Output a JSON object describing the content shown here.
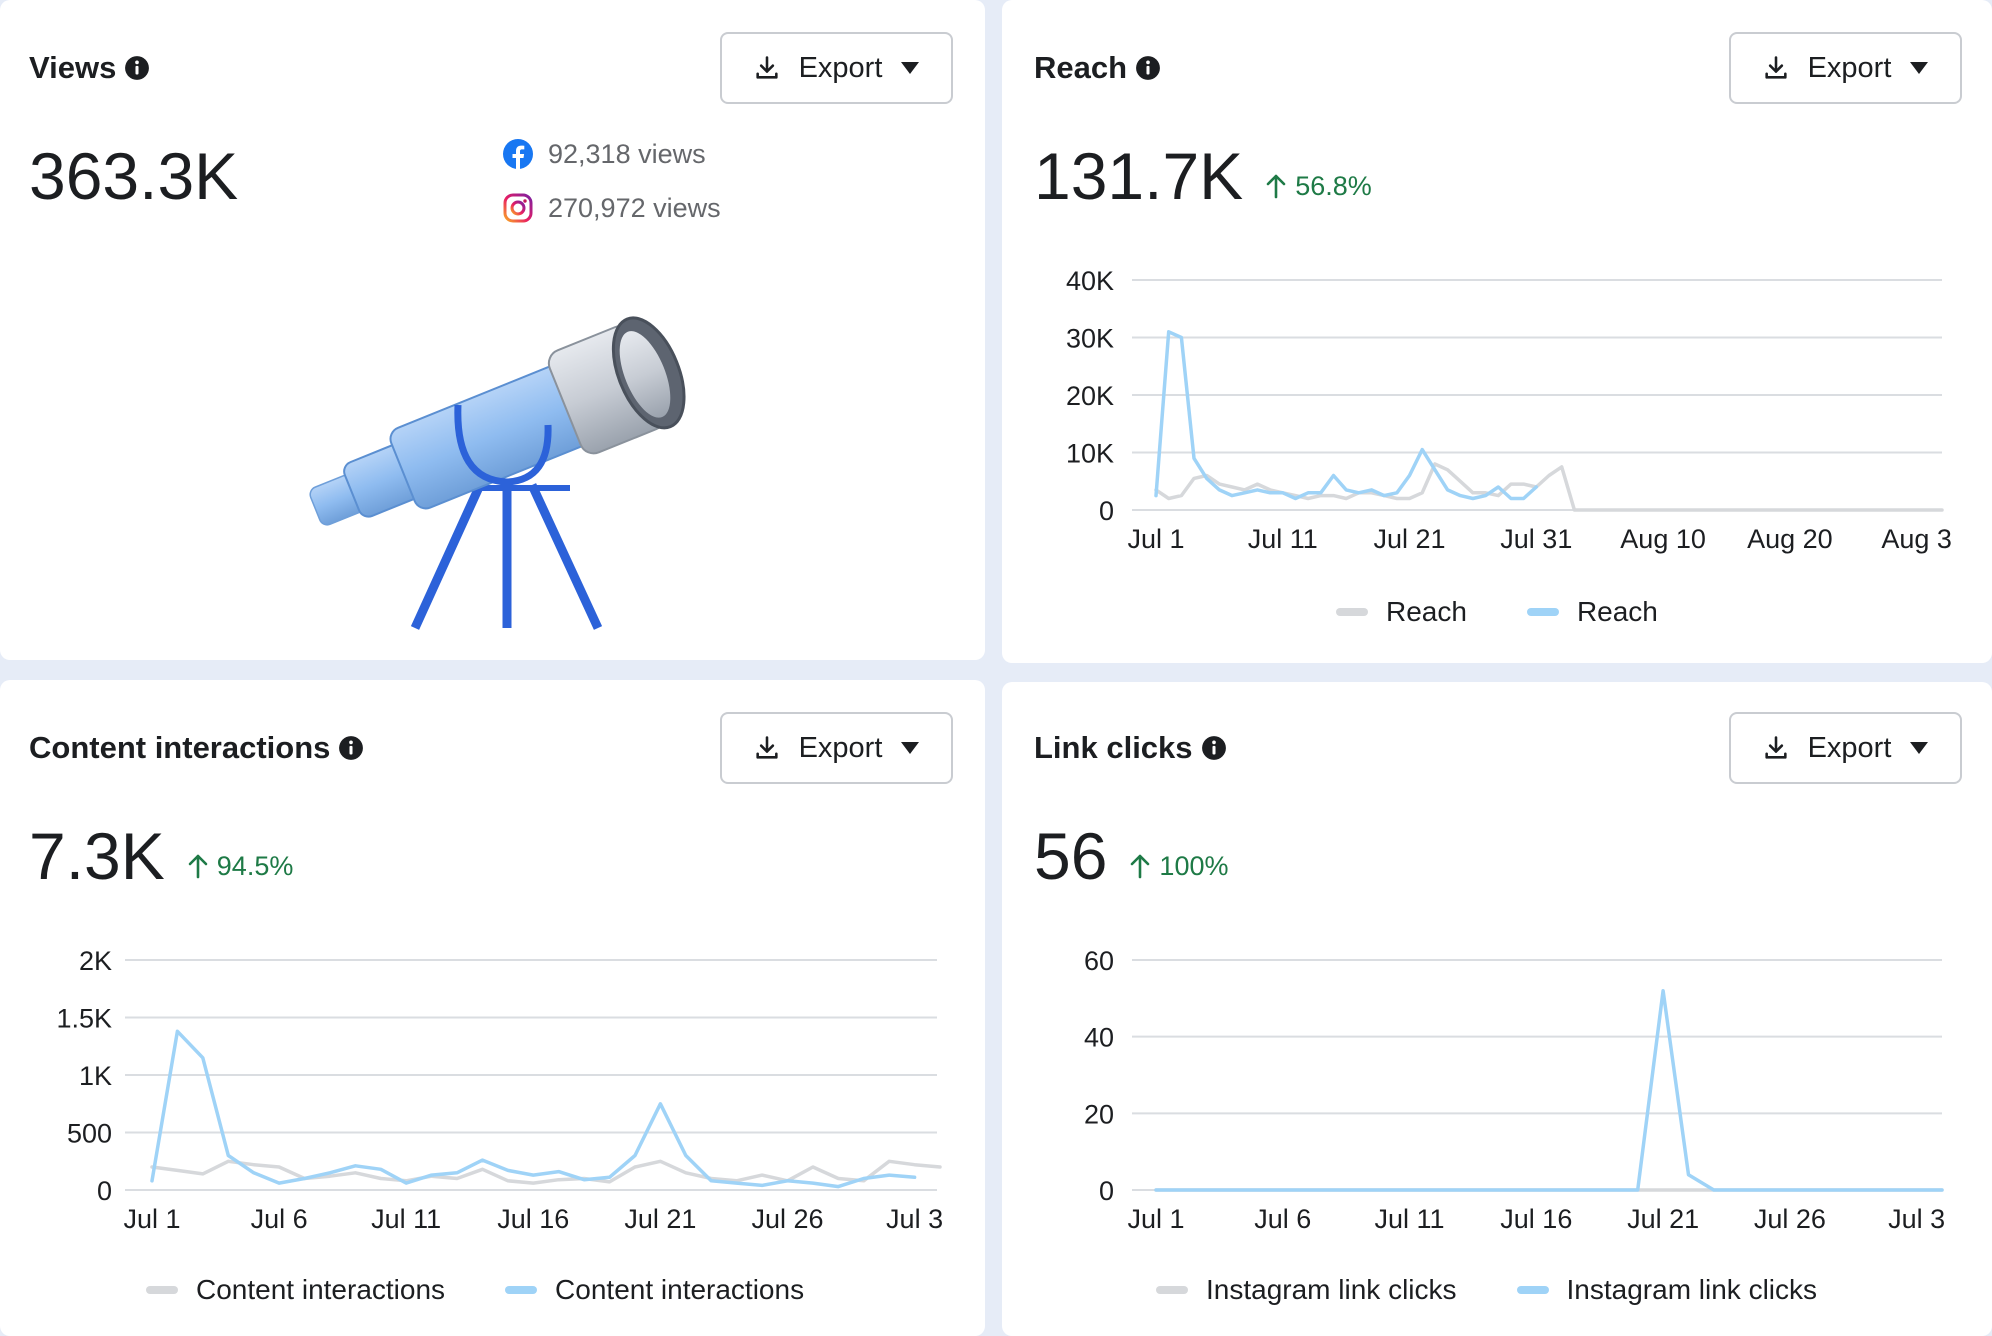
{
  "views": {
    "title": "Views",
    "export_label": "Export",
    "total": "363.3K",
    "facebook_views": "92,318 views",
    "instagram_views": "270,972 views",
    "icons": [
      "info-icon",
      "download-icon",
      "caret-down-icon",
      "facebook-icon",
      "instagram-icon",
      "telescope-illustration"
    ]
  },
  "reach": {
    "title": "Reach",
    "export_label": "Export",
    "total": "131.7K",
    "change": "56.8%"
  },
  "interactions": {
    "title": "Content interactions",
    "export_label": "Export",
    "total": "7.3K",
    "change": "94.5%"
  },
  "links": {
    "title": "Link clicks",
    "export_label": "Export",
    "total": "56",
    "change": "100%"
  },
  "colors": {
    "current_series": "#9fd3f7",
    "previous_series": "#d6d8db",
    "trend_up": "#1e7a46",
    "facebook": "#1877f2",
    "grid": "#dadde1"
  },
  "chart_data": [
    {
      "id": "reach",
      "type": "line",
      "x_ticks": [
        "Jul 1",
        "Jul 11",
        "Jul 21",
        "Jul 31",
        "Aug 10",
        "Aug 20",
        "Aug 3"
      ],
      "y_ticks": [
        "40K",
        "30K",
        "20K",
        "10K",
        "0"
      ],
      "ylim": [
        0,
        40000
      ],
      "x_range_days": [
        0,
        62
      ],
      "grid": true,
      "legend_placement": "bottom",
      "series": [
        {
          "name": "Reach",
          "role": "previous",
          "x": [
            0,
            1,
            2,
            3,
            4,
            5,
            6,
            7,
            8,
            9,
            10,
            11,
            12,
            13,
            14,
            15,
            16,
            17,
            18,
            19,
            20,
            21,
            22,
            23,
            24,
            25,
            26,
            27,
            28,
            29,
            30,
            31,
            32,
            33,
            34,
            35,
            36,
            37,
            38,
            39,
            40,
            41,
            42,
            43,
            44,
            45,
            46,
            47,
            48,
            49,
            50,
            51,
            52,
            53,
            54,
            55,
            56,
            57,
            58,
            59,
            60,
            61,
            62
          ],
          "values": [
            3500,
            2000,
            2500,
            5500,
            6000,
            4500,
            4000,
            3500,
            4500,
            3500,
            3000,
            2500,
            2000,
            2500,
            2500,
            2000,
            3000,
            3000,
            2500,
            2000,
            2000,
            3000,
            8000,
            7000,
            5000,
            3000,
            3000,
            2500,
            4500,
            4500,
            4000,
            6000,
            7500,
            0,
            0,
            0,
            0,
            0,
            0,
            0,
            0,
            0,
            0,
            0,
            0,
            0,
            0,
            0,
            0,
            0,
            0,
            0,
            0,
            0,
            0,
            0,
            0,
            0,
            0,
            0,
            0,
            0,
            0
          ]
        },
        {
          "name": "Reach",
          "role": "current",
          "x": [
            0,
            1,
            2,
            3,
            4,
            5,
            6,
            7,
            8,
            9,
            10,
            11,
            12,
            13,
            14,
            15,
            16,
            17,
            18,
            19,
            20,
            21,
            22,
            23,
            24,
            25,
            26,
            27,
            28,
            29,
            30
          ],
          "values": [
            2500,
            31000,
            30000,
            9000,
            5500,
            3500,
            2500,
            3000,
            3500,
            3000,
            3000,
            2000,
            3000,
            3000,
            6000,
            3500,
            3000,
            3500,
            2500,
            3000,
            6000,
            10500,
            7000,
            3500,
            2500,
            2000,
            2500,
            4000,
            2000,
            2000,
            4000
          ]
        }
      ]
    },
    {
      "id": "content-interactions",
      "type": "line",
      "x_ticks": [
        "Jul 1",
        "Jul 6",
        "Jul 11",
        "Jul 16",
        "Jul 21",
        "Jul 26",
        "Jul 3"
      ],
      "y_ticks": [
        "2K",
        "1.5K",
        "1K",
        "500",
        "0"
      ],
      "ylim": [
        0,
        2000
      ],
      "grid": true,
      "legend_placement": "bottom",
      "series": [
        {
          "name": "Content interactions",
          "role": "previous",
          "x": [
            0,
            1,
            2,
            3,
            4,
            5,
            6,
            7,
            8,
            9,
            10,
            11,
            12,
            13,
            14,
            15,
            16,
            17,
            18,
            19,
            20,
            21,
            22,
            23,
            24,
            25,
            26,
            27,
            28,
            29,
            30,
            31
          ],
          "values": [
            200,
            170,
            140,
            250,
            220,
            200,
            100,
            120,
            150,
            100,
            80,
            120,
            100,
            180,
            80,
            60,
            90,
            100,
            70,
            200,
            250,
            150,
            100,
            80,
            130,
            80,
            200,
            100,
            80,
            250,
            220,
            200
          ]
        },
        {
          "name": "Content interactions",
          "role": "current",
          "x": [
            0,
            1,
            2,
            3,
            4,
            5,
            6,
            7,
            8,
            9,
            10,
            11,
            12,
            13,
            14,
            15,
            16,
            17,
            18,
            19,
            20,
            21,
            22,
            23,
            24,
            25,
            26,
            27,
            28,
            29,
            30
          ],
          "values": [
            80,
            1380,
            1150,
            300,
            150,
            60,
            100,
            150,
            210,
            180,
            60,
            130,
            150,
            260,
            170,
            130,
            160,
            90,
            110,
            300,
            750,
            300,
            80,
            60,
            40,
            80,
            60,
            30,
            100,
            130,
            110
          ]
        }
      ]
    },
    {
      "id": "link-clicks",
      "type": "line",
      "x_ticks": [
        "Jul 1",
        "Jul 6",
        "Jul 11",
        "Jul 16",
        "Jul 21",
        "Jul 26",
        "Jul 3"
      ],
      "y_ticks": [
        "60",
        "40",
        "20",
        "0"
      ],
      "ylim": [
        0,
        60
      ],
      "grid": true,
      "legend_placement": "bottom",
      "series": [
        {
          "name": "Instagram link clicks",
          "role": "previous",
          "x": [
            0,
            1,
            2,
            3,
            4,
            5,
            6,
            7,
            8,
            9,
            10,
            11,
            12,
            13,
            14,
            15,
            16,
            17,
            18,
            19,
            20,
            21,
            22,
            23,
            24,
            25,
            26,
            27,
            28,
            29,
            30,
            31
          ],
          "values": [
            0,
            0,
            0,
            0,
            0,
            0,
            0,
            0,
            0,
            0,
            0,
            0,
            0,
            0,
            0,
            0,
            0,
            0,
            0,
            0,
            0,
            0,
            0,
            0,
            0,
            0,
            0,
            0,
            0,
            0,
            0,
            0
          ]
        },
        {
          "name": "Instagram link clicks",
          "role": "current",
          "x": [
            0,
            1,
            2,
            3,
            4,
            5,
            6,
            7,
            8,
            9,
            10,
            11,
            12,
            13,
            14,
            15,
            16,
            17,
            18,
            19,
            20,
            21,
            22,
            23,
            24,
            25,
            26,
            27,
            28,
            29,
            30,
            31
          ],
          "values": [
            0,
            0,
            0,
            0,
            0,
            0,
            0,
            0,
            0,
            0,
            0,
            0,
            0,
            0,
            0,
            0,
            0,
            0,
            0,
            0,
            52,
            4,
            0,
            0,
            0,
            0,
            0,
            0,
            0,
            0,
            0,
            0
          ]
        }
      ]
    }
  ]
}
